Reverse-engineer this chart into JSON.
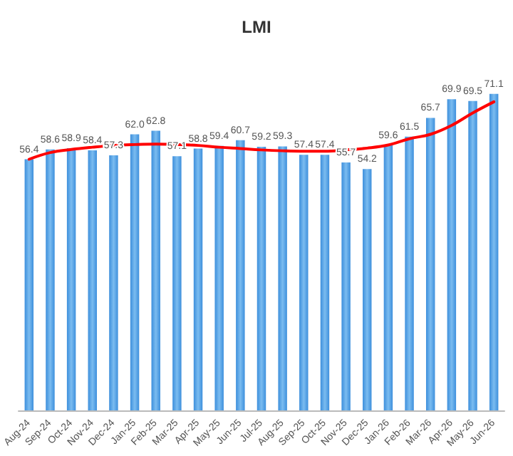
{
  "chart_data": {
    "type": "bar",
    "title": "LMI",
    "categories": [
      "Aug-24",
      "Sep-24",
      "Oct-24",
      "Nov-24",
      "Dec-24",
      "Jan-25",
      "Feb-25",
      "Mar-25",
      "Apr-25",
      "May-25",
      "Jun-25",
      "Jul-25",
      "Aug-25",
      "Sep-25",
      "Oct-25",
      "Nov-25",
      "Dec-25",
      "Jan-26",
      "Feb-26",
      "Mar-26",
      "Apr-26",
      "May-26",
      "Jun-26"
    ],
    "series": [
      {
        "color": "#3d8fdc",
        "values": [
          56.4,
          58.6,
          58.9,
          58.4,
          57.3,
          62.0,
          62.8,
          57.1,
          58.8,
          59.4,
          60.7,
          59.2,
          59.3,
          57.4,
          57.4,
          55.7,
          54.2,
          59.6,
          61.5,
          65.7,
          69.9,
          69.5,
          71.1
        ],
        "value_labels": [
          "56.4",
          "58.6",
          "58.9",
          "58.4",
          "57.3",
          "62.0",
          "62.8",
          "57.1",
          "58.8",
          "59.4",
          "60.7",
          "59.2",
          "59.3",
          "57.4",
          "57.4",
          "55.7",
          "54.2",
          "59.6",
          "61.5",
          "65.7",
          "69.9",
          "69.5",
          "71.1"
        ]
      },
      {
        "type": "line",
        "color": "#ff0000",
        "x": [
          "Aug-24",
          "Sep-24",
          "Oct-24",
          "Nov-24",
          "Dec-24",
          "Jan-25",
          "Feb-25",
          "Mar-25",
          "Apr-25",
          "May-25",
          "Jun-25",
          "Jul-25",
          "Aug-25",
          "Sep-25",
          "Oct-25",
          "Nov-25",
          "Dec-25",
          "Jan-26",
          "Feb-26",
          "Mar-26",
          "Apr-26",
          "May-26",
          "Jun-26"
        ],
        "values": [
          56.4,
          57.9,
          58.6,
          59.1,
          59.5,
          59.7,
          59.8,
          59.7,
          59.5,
          59.1,
          58.8,
          58.5,
          58.3,
          58.2,
          58.2,
          58.5,
          58.9,
          59.6,
          61.0,
          62.0,
          64.0,
          66.8,
          69.3
        ]
      }
    ],
    "tick_labels": "x",
    "grid": false,
    "marker": "none",
    "line_style": "solid"
  }
}
